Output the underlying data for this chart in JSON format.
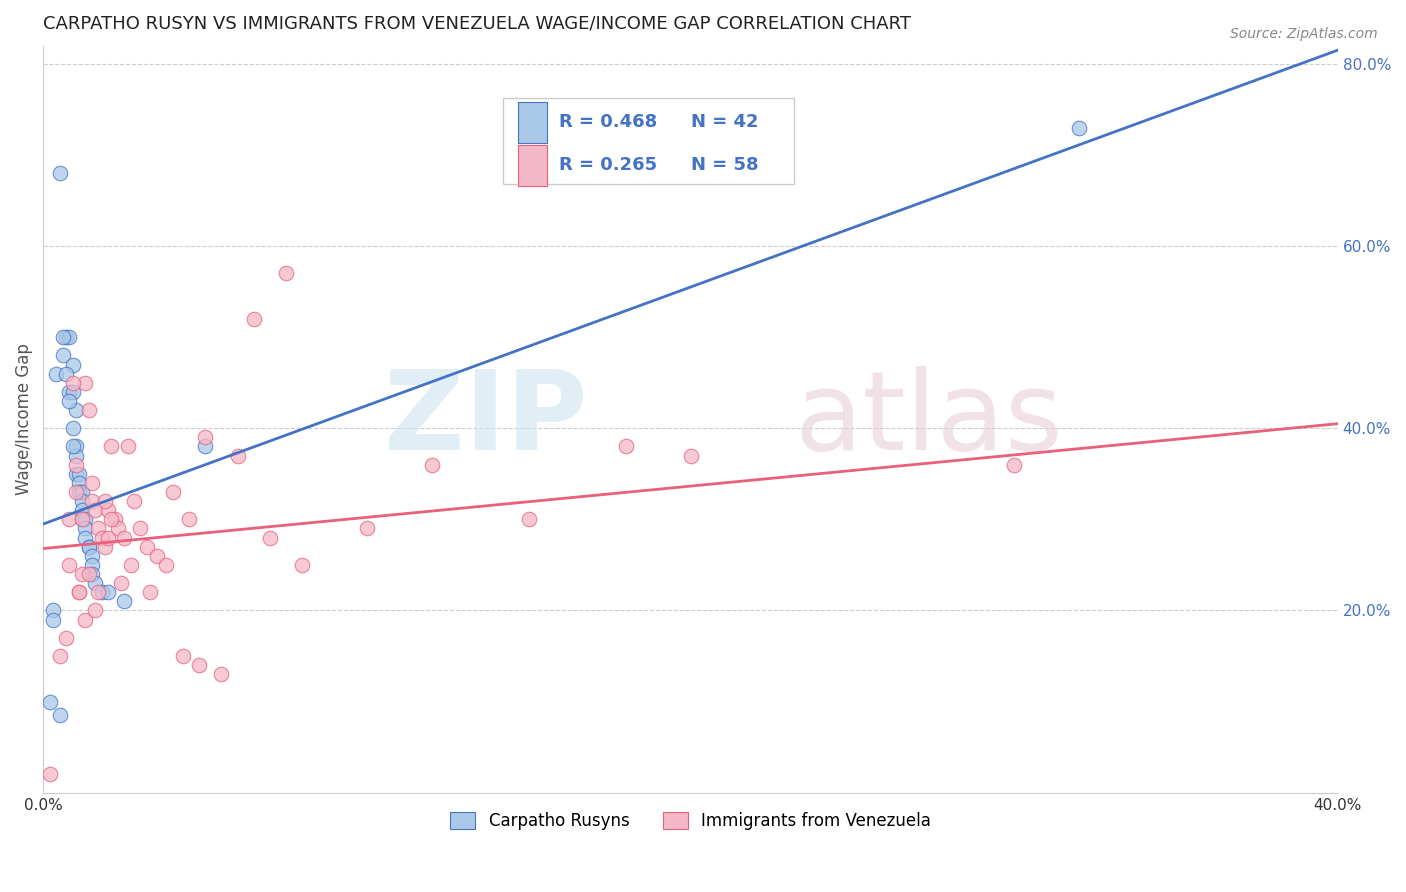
{
  "title": "CARPATHO RUSYN VS IMMIGRANTS FROM VENEZUELA WAGE/INCOME GAP CORRELATION CHART",
  "source": "Source: ZipAtlas.com",
  "ylabel": "Wage/Income Gap",
  "xlim": [
    0.0,
    0.4
  ],
  "ylim": [
    0.0,
    0.82
  ],
  "xtick_pos": [
    0.0,
    0.05,
    0.1,
    0.15,
    0.2,
    0.25,
    0.3,
    0.35,
    0.4
  ],
  "xtick_labels": [
    "0.0%",
    "",
    "",
    "",
    "",
    "",
    "",
    "",
    "40.0%"
  ],
  "ytick_positions": [
    0.2,
    0.4,
    0.6,
    0.8
  ],
  "ytick_labels_right": [
    "20.0%",
    "40.0%",
    "60.0%",
    "80.0%"
  ],
  "blue_R": "R = 0.468",
  "blue_N": "N = 42",
  "pink_R": "R = 0.265",
  "pink_N": "N = 58",
  "blue_fill_color": "#aac8e8",
  "pink_fill_color": "#f4b8c8",
  "blue_line_color": "#4472c4",
  "pink_line_color": "#e8607a",
  "legend_label_blue": "Carpatho Rusyns",
  "legend_label_pink": "Immigrants from Venezuela",
  "blue_line_x0": 0.0,
  "blue_line_x1": 0.4,
  "blue_line_y0": 0.295,
  "blue_line_y1": 0.815,
  "pink_line_x0": 0.0,
  "pink_line_x1": 0.4,
  "pink_line_y0": 0.268,
  "pink_line_y1": 0.405,
  "blue_scatter_x": [
    0.003,
    0.005,
    0.006,
    0.007,
    0.008,
    0.008,
    0.009,
    0.009,
    0.009,
    0.01,
    0.01,
    0.01,
    0.01,
    0.011,
    0.011,
    0.011,
    0.012,
    0.012,
    0.012,
    0.012,
    0.013,
    0.013,
    0.013,
    0.014,
    0.014,
    0.015,
    0.015,
    0.015,
    0.016,
    0.018,
    0.02,
    0.025,
    0.05,
    0.32,
    0.002,
    0.003,
    0.004,
    0.005,
    0.006,
    0.007,
    0.008,
    0.009
  ],
  "blue_scatter_y": [
    0.2,
    0.085,
    0.48,
    0.5,
    0.5,
    0.44,
    0.47,
    0.44,
    0.4,
    0.42,
    0.38,
    0.37,
    0.35,
    0.35,
    0.34,
    0.33,
    0.33,
    0.32,
    0.31,
    0.3,
    0.3,
    0.29,
    0.28,
    0.27,
    0.27,
    0.26,
    0.25,
    0.24,
    0.23,
    0.22,
    0.22,
    0.21,
    0.38,
    0.73,
    0.1,
    0.19,
    0.46,
    0.68,
    0.5,
    0.46,
    0.43,
    0.38
  ],
  "pink_scatter_x": [
    0.002,
    0.005,
    0.007,
    0.008,
    0.01,
    0.01,
    0.011,
    0.012,
    0.013,
    0.014,
    0.015,
    0.015,
    0.016,
    0.017,
    0.018,
    0.019,
    0.02,
    0.02,
    0.021,
    0.022,
    0.023,
    0.025,
    0.026,
    0.028,
    0.03,
    0.032,
    0.035,
    0.04,
    0.045,
    0.05,
    0.06,
    0.07,
    0.08,
    0.1,
    0.12,
    0.15,
    0.18,
    0.2,
    0.008,
    0.009,
    0.011,
    0.012,
    0.013,
    0.014,
    0.016,
    0.017,
    0.019,
    0.021,
    0.024,
    0.027,
    0.033,
    0.038,
    0.043,
    0.048,
    0.055,
    0.065,
    0.075,
    0.3
  ],
  "pink_scatter_y": [
    0.02,
    0.15,
    0.17,
    0.3,
    0.33,
    0.36,
    0.22,
    0.3,
    0.45,
    0.42,
    0.34,
    0.32,
    0.31,
    0.29,
    0.28,
    0.27,
    0.31,
    0.28,
    0.38,
    0.3,
    0.29,
    0.28,
    0.38,
    0.32,
    0.29,
    0.27,
    0.26,
    0.33,
    0.3,
    0.39,
    0.37,
    0.28,
    0.25,
    0.29,
    0.36,
    0.3,
    0.38,
    0.37,
    0.25,
    0.45,
    0.22,
    0.24,
    0.19,
    0.24,
    0.2,
    0.22,
    0.32,
    0.3,
    0.23,
    0.25,
    0.22,
    0.25,
    0.15,
    0.14,
    0.13,
    0.52,
    0.57,
    0.36
  ]
}
